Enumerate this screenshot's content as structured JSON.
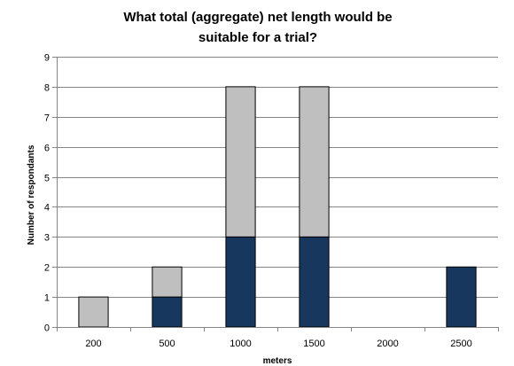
{
  "chart_data": {
    "type": "bar",
    "stacked": true,
    "title_lines": [
      "What total (aggregate) net length would be",
      "suitable for a trial?"
    ],
    "xlabel": "meters",
    "ylabel": "Number of respondants",
    "categories": [
      "200",
      "500",
      "1000",
      "1500",
      "2000",
      "2500"
    ],
    "ylim": [
      0,
      9
    ],
    "yticks": [
      "0",
      "1",
      "2",
      "3",
      "4",
      "5",
      "6",
      "7",
      "8",
      "9"
    ],
    "grid": true,
    "legend": "none",
    "series": [
      {
        "values": [
          0,
          1,
          3,
          3,
          0,
          2
        ],
        "color": "#17375e"
      },
      {
        "values": [
          1,
          1,
          5,
          5,
          0,
          0
        ],
        "color": "#bfbfbf"
      }
    ]
  }
}
